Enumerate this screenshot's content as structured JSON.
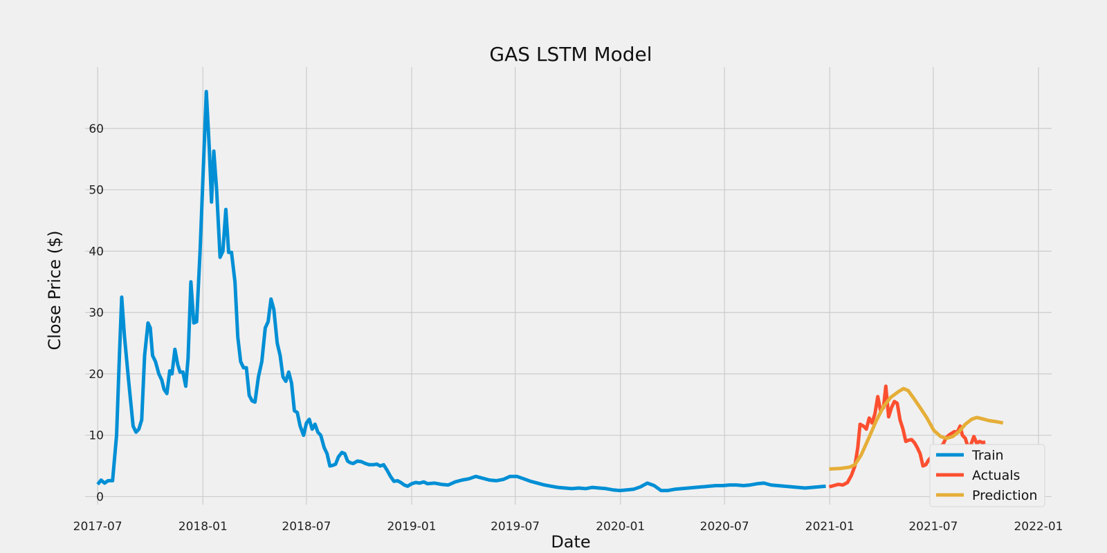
{
  "chart_data": {
    "type": "line",
    "title": "GAS LSTM Model",
    "xlabel": "Date",
    "ylabel": "Close Price ($)",
    "xlim": [
      "2017-06-09",
      "2022-01-24"
    ],
    "ylim": [
      -1.3,
      70
    ],
    "x_ticks": [
      "2017-07",
      "2018-01",
      "2018-07",
      "2019-01",
      "2019-07",
      "2020-01",
      "2020-07",
      "2021-01",
      "2021-07",
      "2022-01"
    ],
    "y_ticks": [
      0,
      10,
      20,
      30,
      40,
      50,
      60
    ],
    "grid": true,
    "legend_position": "lower-right",
    "series": [
      {
        "name": "Train",
        "color": "#008fd5",
        "points": [
          [
            "2017-07-01",
            2.0
          ],
          [
            "2017-07-07",
            2.7
          ],
          [
            "2017-07-13",
            2.2
          ],
          [
            "2017-07-19",
            2.6
          ],
          [
            "2017-07-27",
            2.6
          ],
          [
            "2017-08-03",
            10.0
          ],
          [
            "2017-08-08",
            23.0
          ],
          [
            "2017-08-12",
            32.5
          ],
          [
            "2017-08-17",
            26.0
          ],
          [
            "2017-08-24",
            19.0
          ],
          [
            "2017-09-01",
            11.5
          ],
          [
            "2017-09-06",
            10.5
          ],
          [
            "2017-09-11",
            11.0
          ],
          [
            "2017-09-16",
            12.5
          ],
          [
            "2017-09-21",
            23.0
          ],
          [
            "2017-09-27",
            28.3
          ],
          [
            "2017-10-01",
            27.5
          ],
          [
            "2017-10-05",
            23.0
          ],
          [
            "2017-10-10",
            22.0
          ],
          [
            "2017-10-16",
            20.0
          ],
          [
            "2017-10-21",
            19.0
          ],
          [
            "2017-10-25",
            17.5
          ],
          [
            "2017-10-30",
            16.8
          ],
          [
            "2017-11-04",
            20.5
          ],
          [
            "2017-11-08",
            20.0
          ],
          [
            "2017-11-13",
            24.0
          ],
          [
            "2017-11-18",
            21.5
          ],
          [
            "2017-11-22",
            20.3
          ],
          [
            "2017-11-27",
            20.3
          ],
          [
            "2017-12-02",
            18.0
          ],
          [
            "2017-12-06",
            22.5
          ],
          [
            "2017-12-11",
            35.0
          ],
          [
            "2017-12-16",
            28.3
          ],
          [
            "2017-12-21",
            28.5
          ],
          [
            "2017-12-27",
            40.0
          ],
          [
            "2018-01-07",
            66.0
          ],
          [
            "2018-01-12",
            57.0
          ],
          [
            "2018-01-16",
            48.0
          ],
          [
            "2018-01-20",
            56.3
          ],
          [
            "2018-01-25",
            50.0
          ],
          [
            "2018-01-31",
            39.0
          ],
          [
            "2018-02-05",
            40.0
          ],
          [
            "2018-02-10",
            46.8
          ],
          [
            "2018-02-15",
            39.8
          ],
          [
            "2018-02-20",
            39.8
          ],
          [
            "2018-02-26",
            35.0
          ],
          [
            "2018-03-03",
            26.0
          ],
          [
            "2018-03-08",
            22.0
          ],
          [
            "2018-03-13",
            21.0
          ],
          [
            "2018-03-18",
            21.0
          ],
          [
            "2018-03-23",
            16.5
          ],
          [
            "2018-03-28",
            15.6
          ],
          [
            "2018-04-02",
            15.4
          ],
          [
            "2018-04-08",
            19.5
          ],
          [
            "2018-04-14",
            22.0
          ],
          [
            "2018-04-20",
            27.5
          ],
          [
            "2018-04-25",
            28.5
          ],
          [
            "2018-04-30",
            32.2
          ],
          [
            "2018-05-05",
            30.5
          ],
          [
            "2018-05-11",
            25.0
          ],
          [
            "2018-05-16",
            23.0
          ],
          [
            "2018-05-21",
            19.5
          ],
          [
            "2018-05-26",
            18.8
          ],
          [
            "2018-05-31",
            20.3
          ],
          [
            "2018-06-05",
            18.5
          ],
          [
            "2018-06-10",
            14.0
          ],
          [
            "2018-06-15",
            13.7
          ],
          [
            "2018-06-20",
            11.5
          ],
          [
            "2018-06-26",
            10.0
          ],
          [
            "2018-07-01",
            12.0
          ],
          [
            "2018-07-06",
            12.6
          ],
          [
            "2018-07-11",
            11.0
          ],
          [
            "2018-07-16",
            11.8
          ],
          [
            "2018-07-21",
            10.5
          ],
          [
            "2018-07-26",
            10.0
          ],
          [
            "2018-08-01",
            8.0
          ],
          [
            "2018-08-06",
            7.0
          ],
          [
            "2018-08-11",
            5.0
          ],
          [
            "2018-08-16",
            5.1
          ],
          [
            "2018-08-21",
            5.3
          ],
          [
            "2018-08-26",
            6.5
          ],
          [
            "2018-09-01",
            7.2
          ],
          [
            "2018-09-06",
            7.0
          ],
          [
            "2018-09-11",
            5.8
          ],
          [
            "2018-09-16",
            5.5
          ],
          [
            "2018-09-21",
            5.4
          ],
          [
            "2018-09-28",
            5.8
          ],
          [
            "2018-10-05",
            5.7
          ],
          [
            "2018-10-12",
            5.4
          ],
          [
            "2018-10-19",
            5.2
          ],
          [
            "2018-10-26",
            5.2
          ],
          [
            "2018-11-01",
            5.3
          ],
          [
            "2018-11-07",
            5.0
          ],
          [
            "2018-11-13",
            5.2
          ],
          [
            "2018-11-19",
            4.3
          ],
          [
            "2018-11-25",
            3.3
          ],
          [
            "2018-12-01",
            2.5
          ],
          [
            "2018-12-07",
            2.6
          ],
          [
            "2018-12-13",
            2.3
          ],
          [
            "2018-12-19",
            1.9
          ],
          [
            "2018-12-25",
            1.7
          ],
          [
            "2019-01-01",
            2.1
          ],
          [
            "2019-01-08",
            2.3
          ],
          [
            "2019-01-15",
            2.2
          ],
          [
            "2019-01-22",
            2.4
          ],
          [
            "2019-01-29",
            2.1
          ],
          [
            "2019-02-10",
            2.2
          ],
          [
            "2019-02-22",
            2.0
          ],
          [
            "2019-03-06",
            1.9
          ],
          [
            "2019-03-18",
            2.4
          ],
          [
            "2019-03-30",
            2.7
          ],
          [
            "2019-04-11",
            2.9
          ],
          [
            "2019-04-23",
            3.3
          ],
          [
            "2019-05-05",
            3.0
          ],
          [
            "2019-05-17",
            2.7
          ],
          [
            "2019-05-29",
            2.6
          ],
          [
            "2019-06-10",
            2.8
          ],
          [
            "2019-06-22",
            3.3
          ],
          [
            "2019-07-04",
            3.3
          ],
          [
            "2019-07-16",
            2.9
          ],
          [
            "2019-07-28",
            2.5
          ],
          [
            "2019-08-09",
            2.2
          ],
          [
            "2019-08-21",
            1.9
          ],
          [
            "2019-09-02",
            1.7
          ],
          [
            "2019-09-14",
            1.5
          ],
          [
            "2019-09-26",
            1.4
          ],
          [
            "2019-10-08",
            1.3
          ],
          [
            "2019-10-20",
            1.4
          ],
          [
            "2019-11-01",
            1.3
          ],
          [
            "2019-11-13",
            1.5
          ],
          [
            "2019-11-25",
            1.4
          ],
          [
            "2019-12-07",
            1.3
          ],
          [
            "2019-12-19",
            1.1
          ],
          [
            "2019-12-31",
            1.0
          ],
          [
            "2020-01-12",
            1.1
          ],
          [
            "2020-01-24",
            1.2
          ],
          [
            "2020-02-05",
            1.6
          ],
          [
            "2020-02-17",
            2.2
          ],
          [
            "2020-02-29",
            1.8
          ],
          [
            "2020-03-12",
            1.0
          ],
          [
            "2020-03-24",
            1.0
          ],
          [
            "2020-04-05",
            1.2
          ],
          [
            "2020-04-17",
            1.3
          ],
          [
            "2020-04-29",
            1.4
          ],
          [
            "2020-05-11",
            1.5
          ],
          [
            "2020-05-23",
            1.6
          ],
          [
            "2020-06-04",
            1.7
          ],
          [
            "2020-06-16",
            1.8
          ],
          [
            "2020-06-28",
            1.8
          ],
          [
            "2020-07-10",
            1.9
          ],
          [
            "2020-07-22",
            1.9
          ],
          [
            "2020-08-03",
            1.8
          ],
          [
            "2020-08-15",
            1.9
          ],
          [
            "2020-08-27",
            2.1
          ],
          [
            "2020-09-08",
            2.2
          ],
          [
            "2020-09-20",
            1.9
          ],
          [
            "2020-10-02",
            1.8
          ],
          [
            "2020-10-14",
            1.7
          ],
          [
            "2020-10-26",
            1.6
          ],
          [
            "2020-11-07",
            1.5
          ],
          [
            "2020-11-19",
            1.4
          ],
          [
            "2020-12-01",
            1.5
          ],
          [
            "2020-12-13",
            1.6
          ],
          [
            "2020-12-25",
            1.7
          ]
        ]
      },
      {
        "name": "Actuals",
        "color": "#fc4f30",
        "points": [
          [
            "2020-12-31",
            1.6
          ],
          [
            "2021-01-08",
            1.8
          ],
          [
            "2021-01-16",
            2.0
          ],
          [
            "2021-01-24",
            1.9
          ],
          [
            "2021-02-01",
            2.3
          ],
          [
            "2021-02-08",
            3.5
          ],
          [
            "2021-02-14",
            5.0
          ],
          [
            "2021-02-19",
            8.0
          ],
          [
            "2021-02-23",
            11.8
          ],
          [
            "2021-03-01",
            11.5
          ],
          [
            "2021-03-06",
            11.0
          ],
          [
            "2021-03-11",
            12.8
          ],
          [
            "2021-03-16",
            12.0
          ],
          [
            "2021-03-21",
            13.5
          ],
          [
            "2021-03-26",
            16.3
          ],
          [
            "2021-03-31",
            14.0
          ],
          [
            "2021-04-05",
            14.5
          ],
          [
            "2021-04-09",
            18.0
          ],
          [
            "2021-04-14",
            13.0
          ],
          [
            "2021-04-19",
            14.5
          ],
          [
            "2021-04-24",
            15.5
          ],
          [
            "2021-04-29",
            15.2
          ],
          [
            "2021-05-04",
            12.5
          ],
          [
            "2021-05-09",
            11.0
          ],
          [
            "2021-05-14",
            9.0
          ],
          [
            "2021-05-19",
            9.2
          ],
          [
            "2021-05-24",
            9.3
          ],
          [
            "2021-05-29",
            8.8
          ],
          [
            "2021-06-03",
            8.0
          ],
          [
            "2021-06-08",
            7.0
          ],
          [
            "2021-06-13",
            5.0
          ],
          [
            "2021-06-18",
            5.2
          ],
          [
            "2021-06-23",
            6.0
          ],
          [
            "2021-06-28",
            6.5
          ],
          [
            "2021-07-03",
            6.0
          ],
          [
            "2021-07-08",
            7.5
          ],
          [
            "2021-07-13",
            8.2
          ],
          [
            "2021-07-18",
            8.5
          ],
          [
            "2021-07-23",
            9.5
          ],
          [
            "2021-07-28",
            10.0
          ],
          [
            "2021-08-02",
            10.3
          ],
          [
            "2021-08-07",
            10.6
          ],
          [
            "2021-08-12",
            10.5
          ],
          [
            "2021-08-17",
            11.5
          ],
          [
            "2021-08-21",
            10.0
          ],
          [
            "2021-08-26",
            9.5
          ],
          [
            "2021-08-31",
            8.0
          ],
          [
            "2021-09-05",
            8.5
          ],
          [
            "2021-09-10",
            9.8
          ],
          [
            "2021-09-15",
            8.7
          ],
          [
            "2021-09-20",
            9.0
          ],
          [
            "2021-09-25",
            8.8
          ],
          [
            "2021-09-30",
            8.9
          ]
        ]
      },
      {
        "name": "Prediction",
        "color": "#e5ae38",
        "points": [
          [
            "2020-12-31",
            4.5
          ],
          [
            "2021-01-20",
            4.6
          ],
          [
            "2021-02-05",
            4.8
          ],
          [
            "2021-02-14",
            5.2
          ],
          [
            "2021-02-25",
            6.8
          ],
          [
            "2021-03-10",
            9.5
          ],
          [
            "2021-03-23",
            12.3
          ],
          [
            "2021-04-05",
            14.7
          ],
          [
            "2021-04-18",
            16.2
          ],
          [
            "2021-05-01",
            17.1
          ],
          [
            "2021-05-10",
            17.6
          ],
          [
            "2021-05-18",
            17.3
          ],
          [
            "2021-05-28",
            16.0
          ],
          [
            "2021-06-08",
            14.5
          ],
          [
            "2021-06-20",
            12.8
          ],
          [
            "2021-07-02",
            10.8
          ],
          [
            "2021-07-14",
            9.8
          ],
          [
            "2021-07-24",
            9.5
          ],
          [
            "2021-08-04",
            9.8
          ],
          [
            "2021-08-15",
            10.6
          ],
          [
            "2021-08-26",
            11.8
          ],
          [
            "2021-09-06",
            12.6
          ],
          [
            "2021-09-15",
            12.9
          ],
          [
            "2021-09-24",
            12.7
          ],
          [
            "2021-10-06",
            12.4
          ],
          [
            "2021-10-20",
            12.2
          ],
          [
            "2021-10-31",
            12.0
          ]
        ]
      }
    ]
  }
}
